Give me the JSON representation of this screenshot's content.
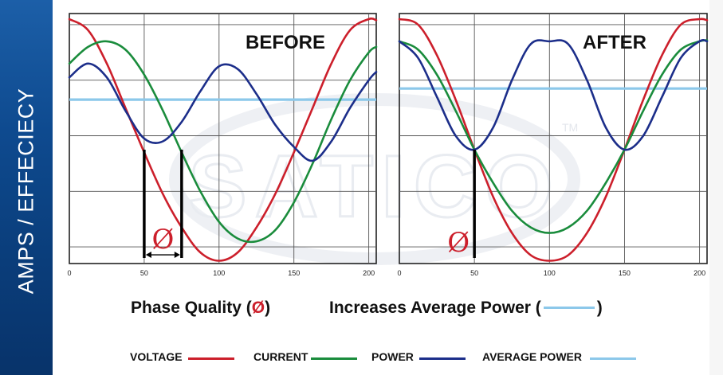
{
  "sidebar": {
    "label": "AMPS / EFFECIECY"
  },
  "watermark": {
    "text": "SATICO",
    "mark": "TM"
  },
  "caption": {
    "left_label": "Phase Quality",
    "phi_symbol": "Ø",
    "right_label": "Increases Average Power"
  },
  "colors": {
    "voltage": "#cc1f2b",
    "current": "#1a8c3c",
    "power": "#1c2e8a",
    "average_power": "#8cc8ea",
    "sidebar": "#0e4a8f"
  },
  "legend": [
    {
      "label": "VOLTAGE",
      "series": "voltage"
    },
    {
      "label": "CURRENT",
      "series": "current"
    },
    {
      "label": "POWER",
      "series": "power"
    },
    {
      "label": "AVERAGE POWER",
      "series": "average_power"
    }
  ],
  "chart_data": [
    {
      "type": "line",
      "title": "BEFORE",
      "xlabel": "",
      "ylabel": "",
      "xlim": [
        0,
        205
      ],
      "ylim": [
        0,
        4.5
      ],
      "x_ticks": [
        0,
        50,
        100,
        150,
        200
      ],
      "grid": true,
      "annotations": [
        {
          "text": "Ø",
          "note": "phase shift between voltage and current",
          "x_from": 50,
          "x_to": 75
        }
      ],
      "series": [
        {
          "name": "VOLTAGE",
          "key": "voltage",
          "x": [
            0,
            12.5,
            25,
            37.5,
            50,
            62.5,
            75,
            87.5,
            100,
            112.5,
            125,
            137.5,
            150,
            162.5,
            175,
            187.5,
            200,
            205
          ],
          "y": [
            4.4,
            4.2,
            3.6,
            2.8,
            2.0,
            1.25,
            0.65,
            0.2,
            0.05,
            0.2,
            0.65,
            1.25,
            2.0,
            2.8,
            3.6,
            4.2,
            4.4,
            4.38
          ]
        },
        {
          "name": "CURRENT",
          "key": "current",
          "x": [
            0,
            12.5,
            25,
            37.5,
            50,
            62.5,
            75,
            87.5,
            100,
            112.5,
            125,
            137.5,
            150,
            162.5,
            175,
            187.5,
            200,
            205
          ],
          "y": [
            3.6,
            3.9,
            4.0,
            3.85,
            3.4,
            2.75,
            2.0,
            1.3,
            0.75,
            0.45,
            0.4,
            0.6,
            1.1,
            1.8,
            2.6,
            3.3,
            3.8,
            3.9
          ]
        },
        {
          "name": "POWER",
          "key": "power",
          "x": [
            0,
            12.5,
            25,
            37.5,
            50,
            62.5,
            75,
            87.5,
            100,
            112.5,
            125,
            137.5,
            150,
            162.5,
            175,
            187.5,
            200,
            205
          ],
          "y": [
            3.35,
            3.6,
            3.35,
            2.75,
            2.25,
            2.2,
            2.55,
            3.1,
            3.55,
            3.5,
            3.05,
            2.5,
            2.1,
            1.85,
            2.2,
            2.8,
            3.3,
            3.45
          ]
        },
        {
          "name": "AVERAGE POWER",
          "key": "average_power",
          "x": [
            0,
            205
          ],
          "y": [
            2.95,
            2.95
          ]
        }
      ]
    },
    {
      "type": "line",
      "title": "AFTER",
      "xlabel": "",
      "ylabel": "",
      "xlim": [
        0,
        205
      ],
      "ylim": [
        0,
        4.5
      ],
      "x_ticks": [
        0,
        50,
        100,
        150,
        200
      ],
      "grid": true,
      "annotations": [
        {
          "text": "Ø",
          "note": "voltage and current in phase",
          "x_from": 50,
          "x_to": 50
        }
      ],
      "series": [
        {
          "name": "VOLTAGE",
          "key": "voltage",
          "x": [
            0,
            12.5,
            25,
            37.5,
            50,
            62.5,
            75,
            87.5,
            100,
            112.5,
            125,
            137.5,
            150,
            162.5,
            175,
            187.5,
            200,
            205
          ],
          "y": [
            4.4,
            4.3,
            3.75,
            2.95,
            2.05,
            1.2,
            0.55,
            0.15,
            0.05,
            0.15,
            0.55,
            1.2,
            2.05,
            2.95,
            3.75,
            4.3,
            4.4,
            4.38
          ]
        },
        {
          "name": "CURRENT",
          "key": "current",
          "x": [
            0,
            12.5,
            25,
            37.5,
            50,
            62.5,
            75,
            87.5,
            100,
            112.5,
            125,
            137.5,
            150,
            162.5,
            175,
            187.5,
            200,
            205
          ],
          "y": [
            4.0,
            3.85,
            3.4,
            2.75,
            2.05,
            1.45,
            0.95,
            0.65,
            0.55,
            0.65,
            0.95,
            1.45,
            2.05,
            2.75,
            3.4,
            3.85,
            4.0,
            4.02
          ]
        },
        {
          "name": "POWER",
          "key": "power",
          "x": [
            0,
            12.5,
            25,
            37.5,
            50,
            62.5,
            75,
            87.5,
            100,
            112.5,
            125,
            137.5,
            150,
            162.5,
            175,
            187.5,
            200,
            205
          ],
          "y": [
            4.0,
            3.7,
            3.0,
            2.3,
            2.05,
            2.45,
            3.3,
            3.95,
            4.0,
            3.95,
            3.3,
            2.45,
            2.05,
            2.3,
            3.0,
            3.7,
            4.0,
            4.0
          ]
        },
        {
          "name": "AVERAGE POWER",
          "key": "average_power",
          "x": [
            0,
            205
          ],
          "y": [
            3.15,
            3.15
          ]
        }
      ]
    }
  ]
}
